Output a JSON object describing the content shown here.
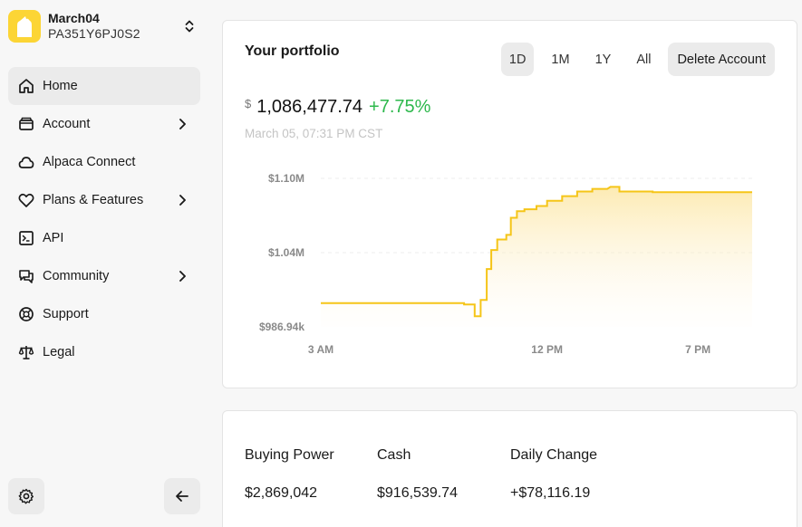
{
  "sidebar": {
    "account": {
      "name": "March04",
      "id": "PA351Y6PJ0S2"
    },
    "items": [
      {
        "label": "Home",
        "icon": "home-icon",
        "active": true,
        "submenu": false
      },
      {
        "label": "Account",
        "icon": "wallet-icon",
        "active": false,
        "submenu": true
      },
      {
        "label": "Alpaca Connect",
        "icon": "cloud-icon",
        "active": false,
        "submenu": false
      },
      {
        "label": "Plans & Features",
        "icon": "heart-icon",
        "active": false,
        "submenu": true
      },
      {
        "label": "API",
        "icon": "terminal-icon",
        "active": false,
        "submenu": false
      },
      {
        "label": "Community",
        "icon": "chat-icon",
        "active": false,
        "submenu": true
      },
      {
        "label": "Support",
        "icon": "lifebuoy-icon",
        "active": false,
        "submenu": false
      },
      {
        "label": "Legal",
        "icon": "scale-icon",
        "active": false,
        "submenu": false
      }
    ],
    "settings_icon": "gear-icon",
    "collapse_icon": "arrow-left-icon"
  },
  "portfolio": {
    "title": "Your portfolio",
    "ranges": [
      "1D",
      "1M",
      "1Y",
      "All"
    ],
    "selected_range": "1D",
    "delete_label": "Delete Account",
    "currency": "$",
    "value": "1,086,477.74",
    "change": "+7.75%",
    "timestamp": "March 05, 07:31 PM CST",
    "accent_color": "#f5c518",
    "change_color": "#2db84c"
  },
  "chart_data": {
    "type": "area",
    "x_ticks": [
      "3 AM",
      "12 PM",
      "7 PM"
    ],
    "y_ticks": [
      "$1.10M",
      "$1.04M",
      "$986.94k"
    ],
    "ylim": [
      986940,
      1100000
    ],
    "grid": true,
    "x": [
      0,
      9.5,
      9.5,
      10.2,
      10.2,
      10.6,
      10.6,
      11.0,
      11.0,
      11.3,
      11.3,
      11.7,
      11.7,
      12.1,
      12.3,
      12.3,
      12.6,
      12.6,
      13.0,
      13.0,
      13.5,
      13.5,
      14.3,
      14.3,
      15.0,
      15.0,
      16.0,
      16.0,
      17.0,
      17.0,
      18.0,
      18.0,
      19.0,
      19.2,
      19.2,
      19.8,
      19.8,
      22.0,
      22.0,
      28.6
    ],
    "y": [
      1005000,
      1005000,
      1004000,
      1004000,
      995000,
      995000,
      1007500,
      1007500,
      1031000,
      1031000,
      1045500,
      1045500,
      1053500,
      1053500,
      1053500,
      1057000,
      1057000,
      1070000,
      1070000,
      1075000,
      1075000,
      1076500,
      1076500,
      1079000,
      1079000,
      1083000,
      1083000,
      1086500,
      1086500,
      1090000,
      1090000,
      1092000,
      1092000,
      1093500,
      1093500,
      1093500,
      1090000,
      1090000,
      1089500,
      1089500
    ]
  },
  "stats": [
    {
      "label": "Buying Power",
      "value": "$2,869,042"
    },
    {
      "label": "Cash",
      "value": "$916,539.74"
    },
    {
      "label": "Daily Change",
      "value": "+$78,116.19"
    }
  ]
}
